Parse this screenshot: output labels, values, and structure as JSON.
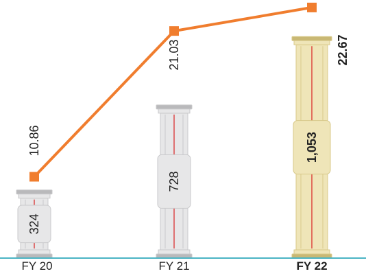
{
  "chart_data": {
    "type": "bar",
    "categories": [
      "FY 20",
      "FY 21",
      "FY 22"
    ],
    "series": [
      {
        "values": [
          324,
          728,
          1053
        ],
        "labels": [
          "324",
          "728",
          "1,053"
        ]
      },
      {
        "values": [
          10.86,
          21.03,
          22.67
        ],
        "labels": [
          "10.86",
          "21.03",
          "22.67"
        ]
      }
    ],
    "highlight_category": "FY 22",
    "colors": {
      "bar_grey_face": "#e7e7e8",
      "bar_grey_edge": "#c9c9cb",
      "bar_grey_dark": "#b9b9bb",
      "bar_gold_face": "#efe5b8",
      "bar_gold_edge": "#d8c98a",
      "bar_gold_dark": "#c9b874",
      "center_line": "#d92020",
      "line": "#f07d2e",
      "baseline": "#4ab4c4",
      "text": "#222222"
    },
    "grid": false,
    "legend": "none"
  }
}
